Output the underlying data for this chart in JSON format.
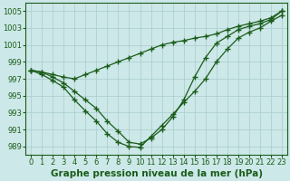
{
  "title": "Graphe pression niveau de la mer (hPa)",
  "xlabel": "Graphe pression niveau de la mer (hPa)",
  "x_values": [
    0,
    1,
    2,
    3,
    4,
    5,
    6,
    7,
    8,
    9,
    10,
    11,
    12,
    13,
    14,
    15,
    16,
    17,
    18,
    19,
    20,
    21,
    22,
    23
  ],
  "series": [
    [
      998.0,
      997.8,
      997.5,
      997.2,
      997.0,
      997.5,
      998.0,
      998.5,
      999.0,
      999.5,
      1000.0,
      1000.5,
      1001.0,
      1001.3,
      1001.5,
      1001.8,
      1002.0,
      1002.3,
      1002.8,
      1003.2,
      1003.5,
      1003.8,
      1004.2,
      1005.0
    ],
    [
      998.0,
      997.8,
      997.2,
      996.5,
      995.5,
      994.5,
      993.5,
      992.0,
      990.8,
      989.5,
      989.3,
      990.0,
      991.0,
      992.5,
      994.5,
      997.2,
      999.5,
      1001.2,
      1002.0,
      1002.8,
      1003.2,
      1003.5,
      1004.0,
      1005.0
    ],
    [
      998.0,
      997.5,
      996.8,
      996.0,
      994.5,
      993.2,
      992.0,
      990.5,
      989.5,
      989.0,
      988.9,
      990.2,
      991.5,
      992.8,
      994.2,
      995.5,
      997.0,
      999.0,
      1000.5,
      1001.8,
      1002.5,
      1003.0,
      1003.8,
      1004.5
    ]
  ],
  "ylim": [
    988,
    1006
  ],
  "yticks": [
    989,
    991,
    993,
    995,
    997,
    999,
    1001,
    1003,
    1005
  ],
  "xlim": [
    -0.5,
    23.5
  ],
  "line_color": "#1a5c1a",
  "marker": "+",
  "markersize": 4,
  "linewidth": 0.9,
  "markeredgewidth": 1.0,
  "bg_color": "#cde8e8",
  "grid_color": "#a8cccc",
  "xlabel_fontsize": 7.5,
  "tick_fontsize": 6
}
